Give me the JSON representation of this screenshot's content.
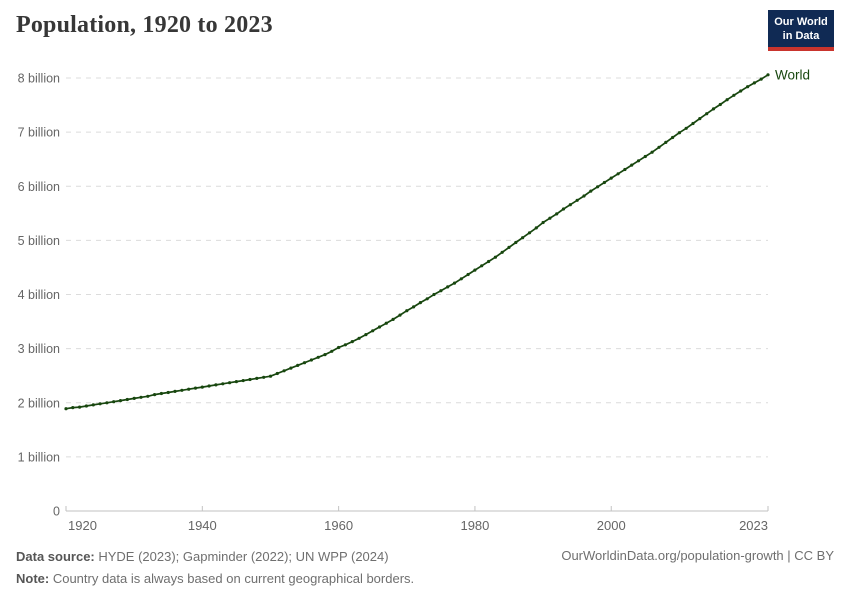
{
  "header": {
    "title": "Population, 1920 to 2023",
    "logo": {
      "line1": "Our World",
      "line2": "in Data",
      "bg_color": "#102a54",
      "accent_color": "#c9342d"
    }
  },
  "chart_data": {
    "type": "line",
    "title": "Population, 1920 to 2023",
    "unit": "billion people",
    "grid": "horizontal dashed",
    "legend_position": "end-of-line label",
    "xlim": [
      1920,
      2023
    ],
    "ylim": [
      0,
      8
    ],
    "xtick_values": [
      1920,
      1940,
      1960,
      1980,
      2000,
      2023
    ],
    "xtick_labels": [
      "1920",
      "1940",
      "1960",
      "1980",
      "2000",
      "2023"
    ],
    "ytick_values": [
      0,
      1,
      2,
      3,
      4,
      5,
      6,
      7,
      8
    ],
    "ytick_labels": [
      "0",
      "1 billion",
      "2 billion",
      "3 billion",
      "4 billion",
      "5 billion",
      "6 billion",
      "7 billion",
      "8 billion"
    ],
    "series": [
      {
        "name": "World",
        "color": "#18470f",
        "x": [
          1920,
          1921,
          1922,
          1923,
          1924,
          1925,
          1926,
          1927,
          1928,
          1929,
          1930,
          1931,
          1932,
          1933,
          1934,
          1935,
          1936,
          1937,
          1938,
          1939,
          1940,
          1941,
          1942,
          1943,
          1944,
          1945,
          1946,
          1947,
          1948,
          1949,
          1950,
          1951,
          1952,
          1953,
          1954,
          1955,
          1956,
          1957,
          1958,
          1959,
          1960,
          1961,
          1962,
          1963,
          1964,
          1965,
          1966,
          1967,
          1968,
          1969,
          1970,
          1971,
          1972,
          1973,
          1974,
          1975,
          1976,
          1977,
          1978,
          1979,
          1980,
          1981,
          1982,
          1983,
          1984,
          1985,
          1986,
          1987,
          1988,
          1989,
          1990,
          1991,
          1992,
          1993,
          1994,
          1995,
          1996,
          1997,
          1998,
          1999,
          2000,
          2001,
          2002,
          2003,
          2004,
          2005,
          2006,
          2007,
          2008,
          2009,
          2010,
          2011,
          2012,
          2013,
          2014,
          2015,
          2016,
          2017,
          2018,
          2019,
          2020,
          2021,
          2022,
          2023
        ],
        "values": [
          1.89,
          1.91,
          1.92,
          1.94,
          1.96,
          1.98,
          2.0,
          2.02,
          2.04,
          2.06,
          2.08,
          2.1,
          2.12,
          2.15,
          2.17,
          2.19,
          2.21,
          2.23,
          2.25,
          2.27,
          2.29,
          2.31,
          2.33,
          2.35,
          2.37,
          2.39,
          2.41,
          2.43,
          2.45,
          2.47,
          2.49,
          2.54,
          2.59,
          2.64,
          2.69,
          2.74,
          2.79,
          2.84,
          2.89,
          2.95,
          3.02,
          3.07,
          3.13,
          3.19,
          3.26,
          3.33,
          3.4,
          3.47,
          3.54,
          3.62,
          3.7,
          3.77,
          3.85,
          3.92,
          4.0,
          4.07,
          4.14,
          4.21,
          4.29,
          4.37,
          4.45,
          4.53,
          4.61,
          4.69,
          4.78,
          4.87,
          4.96,
          5.05,
          5.14,
          5.23,
          5.33,
          5.41,
          5.49,
          5.58,
          5.66,
          5.74,
          5.82,
          5.91,
          5.99,
          6.07,
          6.15,
          6.23,
          6.31,
          6.39,
          6.47,
          6.55,
          6.63,
          6.72,
          6.81,
          6.9,
          6.99,
          7.07,
          7.16,
          7.25,
          7.34,
          7.43,
          7.51,
          7.6,
          7.68,
          7.76,
          7.84,
          7.91,
          7.98,
          8.06
        ]
      }
    ],
    "entity_label": "World",
    "colors": {
      "gridline": "#dcdcdc",
      "axis": "#c2c2c2",
      "tick_label": "#666666"
    }
  },
  "footer": {
    "data_source_label": "Data source:",
    "data_source_text": " HYDE (2023); Gapminder (2022); UN WPP (2024)",
    "note_label": "Note:",
    "note_text": " Country data is always based on current geographical borders.",
    "link_text": "OurWorldinData.org/population-growth | CC BY"
  }
}
